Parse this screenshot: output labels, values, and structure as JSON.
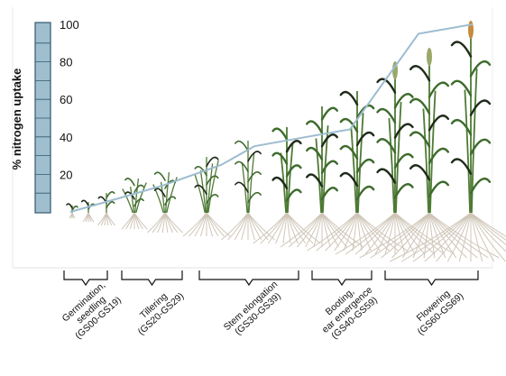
{
  "chart_data": {
    "type": "line",
    "ylabel": "% nitrogen uptake",
    "ylim": [
      0,
      100
    ],
    "y_ticks": [
      "20",
      "40",
      "60",
      "80",
      "100"
    ],
    "grid": false,
    "series": [
      {
        "x": [
          0,
          1,
          2,
          3,
          4,
          5,
          6,
          7,
          8,
          9
        ],
        "values": [
          0,
          7,
          14,
          25,
          35,
          40,
          44,
          95,
          100,
          100
        ]
      }
    ],
    "stages": [
      {
        "lines": [
          "Germination,",
          "seedling",
          "(GS00-GS19)"
        ]
      },
      {
        "lines": [
          "Tillering",
          "(GS20-GS29)"
        ]
      },
      {
        "lines": [
          "Stem elongation",
          "(GS30-GS39)"
        ]
      },
      {
        "lines": [
          "Booting,",
          "ear emergence",
          "(GS40-GS59)"
        ]
      },
      {
        "lines": [
          "Flowering",
          "(GS60-GS69)"
        ]
      }
    ],
    "colors": {
      "uptake_line": "#9dbcd0",
      "scale_bar_fill": "#9fbfce",
      "scale_bar_stroke": "#33586e",
      "leaf": "#3d6b2c",
      "leaf_dark": "#1f2b1a",
      "stem": "#4f7a35",
      "root": "#cfc6b8",
      "ear": "#c58a3a"
    },
    "plant_illustrations": "wheat-growth-stage-icons"
  }
}
